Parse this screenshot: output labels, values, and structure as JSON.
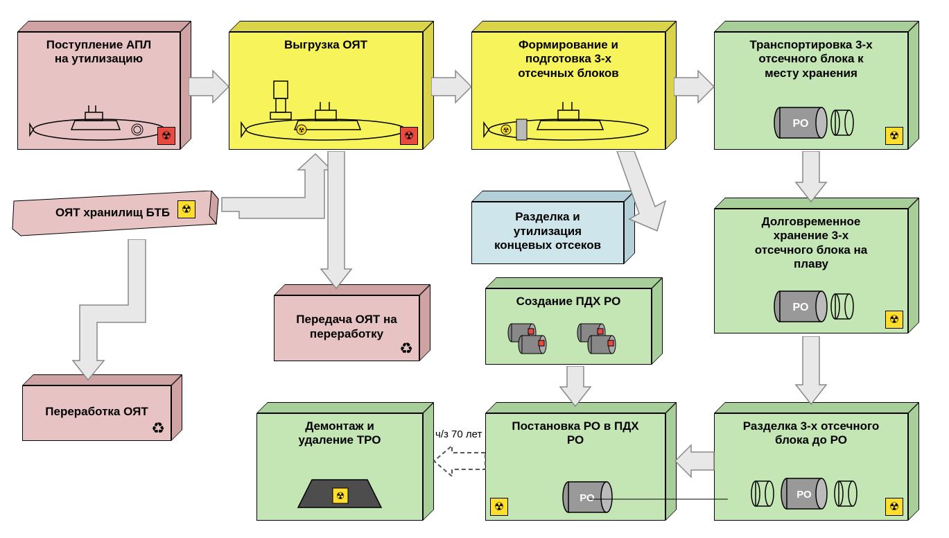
{
  "colors": {
    "pink_front": "#e8c3c3",
    "pink_side": "#cfa3a3",
    "yellow_front": "#f7f35a",
    "yellow_side": "#d9d44a",
    "green_front": "#c3e6b4",
    "green_side": "#a8ce9a",
    "blue_front": "#cfe5ec",
    "blue_side": "#b3d0d9",
    "rad_yellow": "#ffde2e",
    "rad_red": "#e84a3f",
    "arrow_fill": "#e8e8e8",
    "arrow_stroke": "#888888",
    "dark_gray": "#4d4d4d"
  },
  "boxes": {
    "b1": {
      "title": "Поступление АПЛ\nна утилизацию"
    },
    "b2": {
      "title": "Выгрузка ОЯТ"
    },
    "b3": {
      "title": "Формирование и\nподготовка 3-х\nотсечных блоков"
    },
    "b4": {
      "title": "Транспортировка 3-х\nотсечного блока к\nместу хранения"
    },
    "b5": {
      "title": "ОЯТ хранилищ БТБ"
    },
    "b6": {
      "title": "Разделка и\nутилизация\nконцевых отсеков"
    },
    "b7": {
      "title": "Долговременное\nхранение 3-х\nотсечного блока на\nплаву"
    },
    "b8": {
      "title": "Передача ОЯТ на\nпереработку"
    },
    "b9": {
      "title": "Создание ПДХ РО"
    },
    "b10": {
      "title": "Переработка ОЯТ"
    },
    "b11": {
      "title": "Демонтаж и\nудаление ТРО"
    },
    "b12": {
      "title": "Постановка РО в ПДХ\nРО"
    },
    "b13": {
      "title": "Разделка 3-х отсечного\nблока до РО"
    }
  },
  "labels": {
    "ro": "РО",
    "yrs70": "ч/з 70 лет"
  }
}
